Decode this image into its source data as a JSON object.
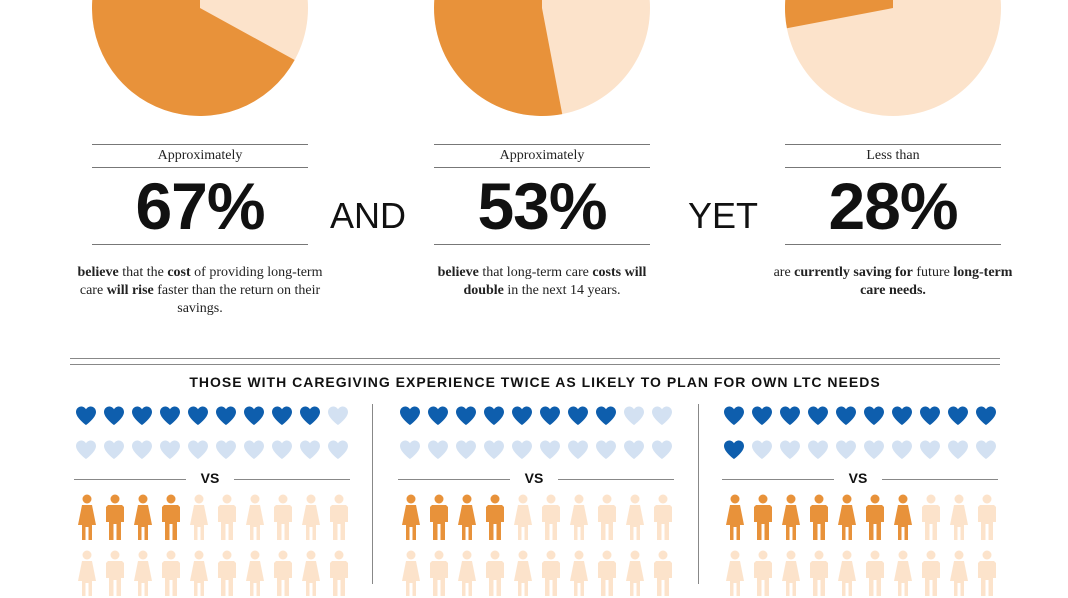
{
  "colors": {
    "pie_filled": "#E8923A",
    "pie_rest": "#FCE3CB",
    "heart_filled": "#0E5EAD",
    "heart_empty": "#D3E1F2",
    "person_filled": "#E8923A",
    "person_empty": "#FCE3CB"
  },
  "stats": [
    {
      "qualifier": "Approximately",
      "value": "67%",
      "pie_fraction": 0.67,
      "desc_parts": [
        {
          "t": "believe",
          "b": true
        },
        {
          "t": " that the ",
          "b": false
        },
        {
          "t": "cost",
          "b": true
        },
        {
          "t": " of providing long-term care ",
          "b": false
        },
        {
          "t": "will rise",
          "b": true
        },
        {
          "t": " faster than the return on their savings.",
          "b": false
        }
      ]
    },
    {
      "qualifier": "Approximately",
      "value": "53%",
      "pie_fraction": 0.53,
      "desc_parts": [
        {
          "t": "believe",
          "b": true
        },
        {
          "t": " that long-term care ",
          "b": false
        },
        {
          "t": "costs will double",
          "b": true
        },
        {
          "t": " in the next 14 years.",
          "b": false
        }
      ]
    },
    {
      "qualifier": "Less than",
      "value": "28%",
      "pie_fraction": 0.28,
      "desc_parts": [
        {
          "t": "are ",
          "b": false
        },
        {
          "t": "currently saving for",
          "b": true
        },
        {
          "t": " future ",
          "b": false
        },
        {
          "t": "long-term care needs.",
          "b": true
        }
      ]
    }
  ],
  "connectors": [
    "AND",
    "YET"
  ],
  "section": {
    "title": "THOSE WITH CAREGIVING EXPERIENCE TWICE AS LIKELY TO PLAN FOR OWN LTC NEEDS",
    "vs_label": "VS",
    "groups": [
      {
        "hearts_filled": 9,
        "people_filled": 4
      },
      {
        "hearts_filled": 8,
        "people_filled": 4
      },
      {
        "hearts_filled": 11,
        "people_filled": 7
      }
    ]
  }
}
